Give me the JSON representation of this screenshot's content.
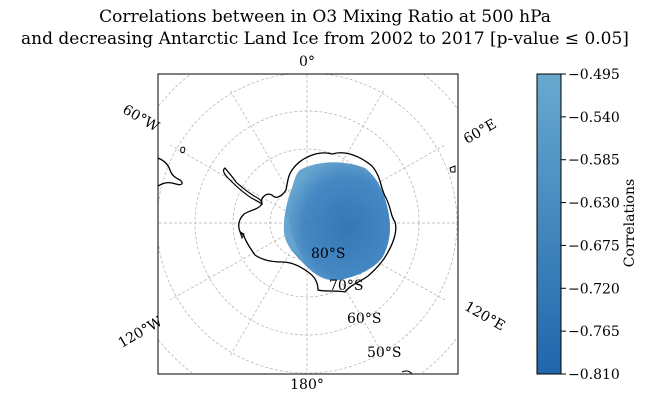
{
  "title": {
    "line1": "Correlations between in O3 Mixing Ratio at 500 hPa",
    "line2": "and decreasing Antarctic Land Ice from 2002 to 2017 [p-value ≤ 0.05]"
  },
  "map": {
    "projection": "south-polar-stereographic",
    "longitude_labels": {
      "top": "0°",
      "bottom": "180°",
      "upper_left": "60°W",
      "upper_right": "60°E",
      "lower_left": "120°W",
      "lower_right": "120°E"
    },
    "latitude_labels": [
      "80°S",
      "70°S",
      "60°S",
      "50°S"
    ],
    "coastline_color": "#000000",
    "gridline_color": "#b0b0b0"
  },
  "colorbar": {
    "label": "Correlations",
    "ticks": [
      "−0.495",
      "−0.540",
      "−0.585",
      "−0.630",
      "−0.675",
      "−0.720",
      "−0.765",
      "−0.810"
    ],
    "min": -0.81,
    "max": -0.495,
    "color_low": "#2166ac",
    "color_high": "#67a9cf"
  }
}
